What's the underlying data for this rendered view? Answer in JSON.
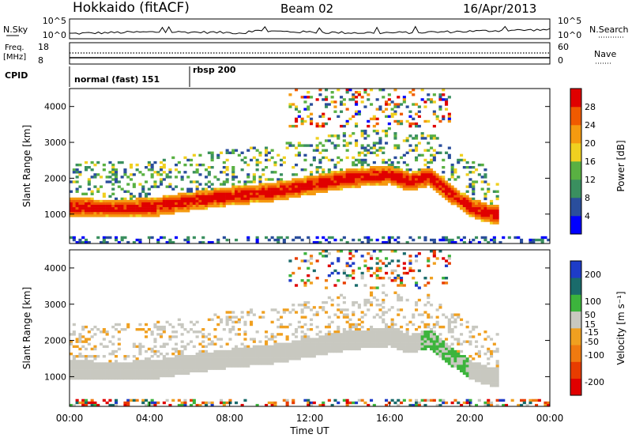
{
  "header": {
    "station": "Hokkaido (fitACF)",
    "beam": "Beam 02",
    "date": "16/Apr/2013"
  },
  "top_panels": {
    "nsky_label": "N.Sky",
    "nsearch_label": "N.Search",
    "freq_label_1": "Freq.",
    "freq_label_2": "[MHz]",
    "nave_label": "Nave",
    "cpid_label": "CPID",
    "left_ticks_noise": [
      "10^5",
      "10^0"
    ],
    "right_ticks_noise": [
      "10^5",
      "10^0"
    ],
    "left_ticks_freq": [
      "18",
      "8"
    ],
    "right_ticks_freq": [
      "60",
      "0"
    ],
    "cpid_segments": [
      {
        "text": "normal (fast) 151",
        "start_hour": 0
      },
      {
        "text": "rbsp 200",
        "start_hour": 6
      }
    ]
  },
  "colors": {
    "power_scale": [
      "#0000ff",
      "#2a4e9c",
      "#3a8f5f",
      "#59b042",
      "#f0d020",
      "#f59a10",
      "#f05a00",
      "#e00000"
    ],
    "velocity_scale": [
      "#1e3cc8",
      "#1a6b6b",
      "#3cb43c",
      "#c8c8c0",
      "#f0a020",
      "#f07a10",
      "#e83c00",
      "#e00000"
    ]
  },
  "chart_data": [
    {
      "type": "heatmap",
      "name": "power",
      "ylabel": "Slant Range [km]",
      "xlabel": "",
      "xlim": [
        0,
        24
      ],
      "ylim": [
        180,
        4500
      ],
      "x_ticks": [
        "00:00",
        "04:00",
        "08:00",
        "12:00",
        "16:00",
        "20:00",
        "00:00"
      ],
      "y_ticks": [
        1000,
        2000,
        3000,
        4000
      ],
      "colorbar": {
        "label": "Power [dB]",
        "ticks": [
          4,
          8,
          12,
          16,
          20,
          24,
          28
        ],
        "range": [
          0,
          32
        ]
      },
      "main_echo_band": {
        "hours": [
          0,
          2,
          4,
          6,
          8,
          10,
          12,
          14,
          16,
          17,
          18,
          19,
          20,
          21
        ],
        "center_km": [
          1200,
          1150,
          1180,
          1350,
          1500,
          1600,
          1800,
          2000,
          2100,
          1900,
          2050,
          1600,
          1200,
          1000
        ]
      }
    },
    {
      "type": "heatmap",
      "name": "velocity",
      "ylabel": "Slant Range [km]",
      "xlabel": "Time UT",
      "xlim": [
        0,
        24
      ],
      "ylim": [
        180,
        4500
      ],
      "x_ticks": [
        "00:00",
        "04:00",
        "08:00",
        "12:00",
        "16:00",
        "20:00",
        "00:00"
      ],
      "y_ticks": [
        1000,
        2000,
        3000,
        4000
      ],
      "colorbar": {
        "label": "Velocity [m s⁻¹]",
        "ticks": [
          200,
          100,
          50,
          15,
          -15,
          -50,
          -100,
          -200
        ],
        "range": [
          -250,
          250
        ]
      }
    }
  ]
}
